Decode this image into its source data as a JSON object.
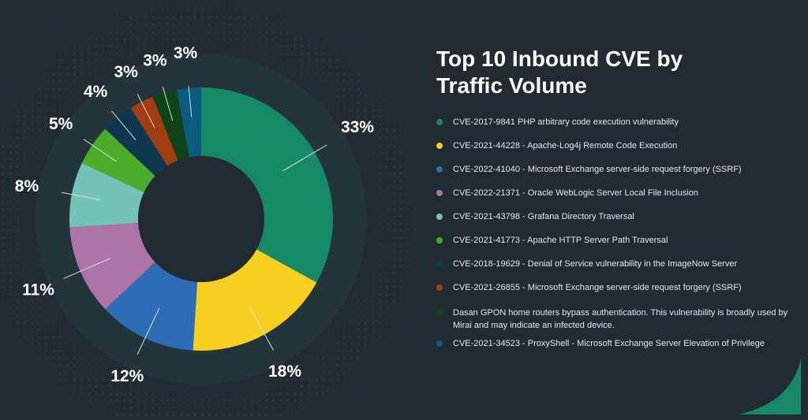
{
  "page": {
    "title": "Top 10 Inbound CVE by Traffic Volume",
    "title_line1": "Top 10 Inbound CVE by",
    "title_line2": "Traffic Volume",
    "background_color": "#222b31",
    "accent_color": "#168a67"
  },
  "chart_data": {
    "type": "pie",
    "variant": "donut",
    "title": "Top 10 Inbound CVE by Traffic Volume",
    "legend_position": "right",
    "start_angle_deg": 0,
    "direction": "clockwise",
    "slices": [
      {
        "label": "CVE-2017-9841 PHP arbitrary code execution vulnerability",
        "value": 33,
        "display": "33%",
        "color": "#168a67"
      },
      {
        "label": "CVE-2021-44228 - Apache-Log4j Remote Code Execution",
        "value": 18,
        "display": "18%",
        "color": "#f7cf21"
      },
      {
        "label": "CVE-2022-41040 - Microsoft Exchange server-side request forgery (SSRF)",
        "value": 12,
        "display": "12%",
        "color": "#2c6db5"
      },
      {
        "label": "CVE-2022-21371 - Oracle WebLogic Server Local File Inclusion",
        "value": 11,
        "display": "11%",
        "color": "#ad74a8"
      },
      {
        "label": "CVE-2021-43798 - Grafana Directory Traversal",
        "value": 8,
        "display": "8%",
        "color": "#73c4b7"
      },
      {
        "label": "CVE-2021-41773 - Apache HTTP Server Path Traversal",
        "value": 5,
        "display": "5%",
        "color": "#4bab2a"
      },
      {
        "label": "CVE-2018-19629 - Denial of Service vulnerability in the ImageNow Server",
        "value": 4,
        "display": "4%",
        "color": "#0e3850"
      },
      {
        "label": "CVE-2021-26855 - Microsoft Exchange server-side request forgery (SSRF)",
        "value": 3,
        "display": "3%",
        "color": "#a03d13"
      },
      {
        "label": "Dasan GPON home routers bypass authentication. This vulnerability is broadly used by Mirai and may indicate an infected device.",
        "value": 3,
        "display": "3%",
        "color": "#0f4418"
      },
      {
        "label": "CVE-2021-34523 - ProxyShell - Microsoft Exchange Server Elevation of Privilege",
        "value": 3,
        "display": "3%",
        "color": "#0b5a80"
      }
    ]
  }
}
